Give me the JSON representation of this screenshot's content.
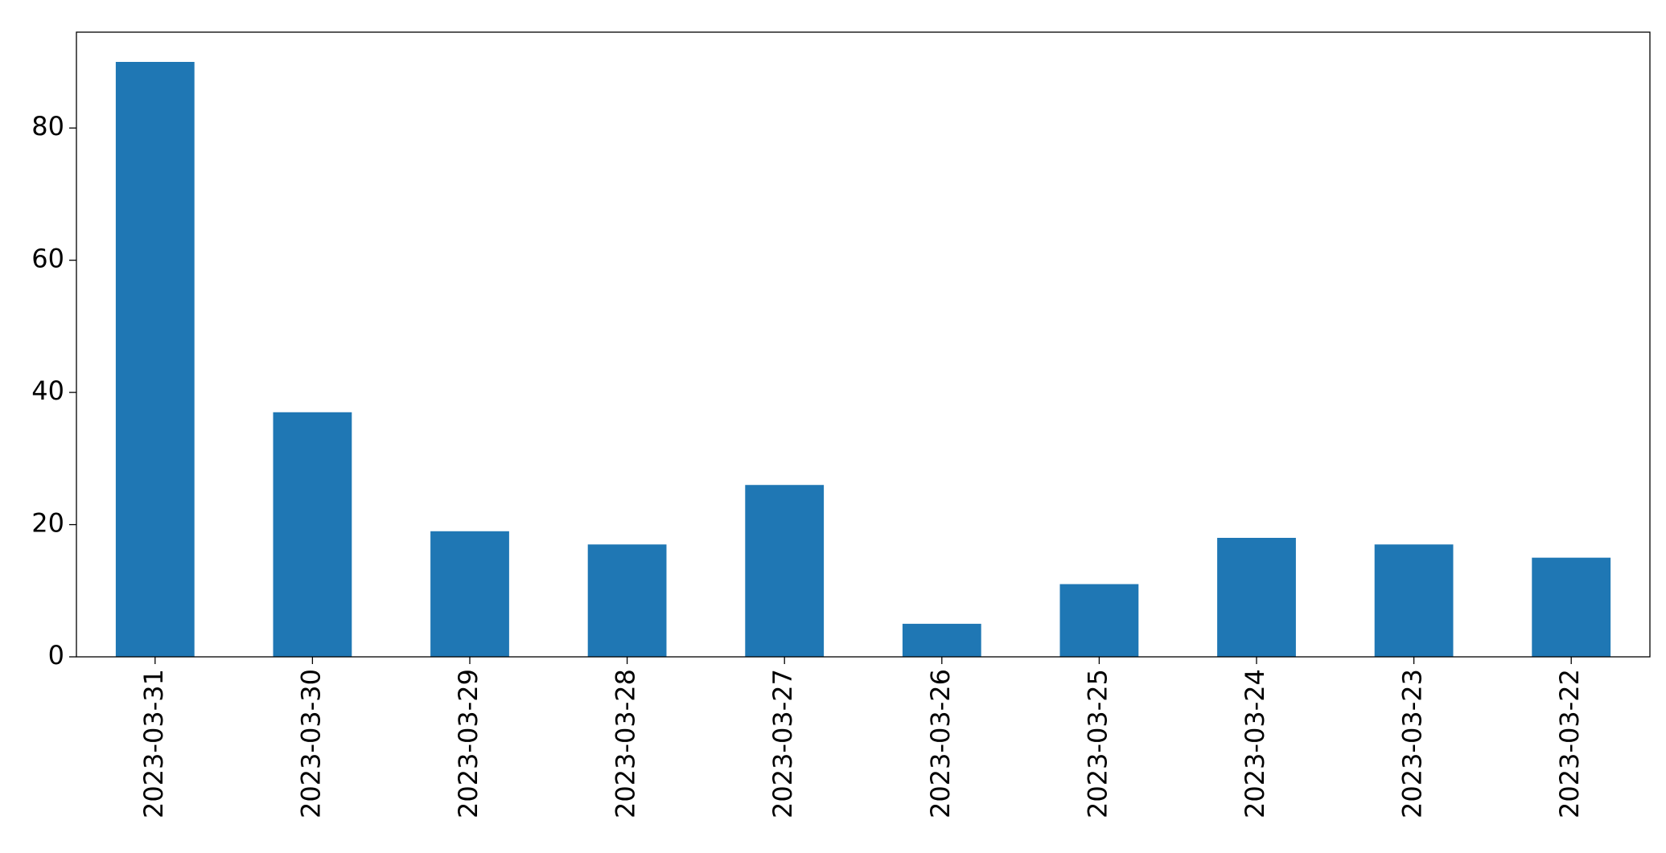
{
  "chart_data": {
    "type": "bar",
    "categories": [
      "2023-03-31",
      "2023-03-30",
      "2023-03-29",
      "2023-03-28",
      "2023-03-27",
      "2023-03-26",
      "2023-03-25",
      "2023-03-24",
      "2023-03-23",
      "2023-03-22"
    ],
    "values": [
      90,
      37,
      19,
      17,
      26,
      5,
      11,
      18,
      17,
      15
    ],
    "color": "#1f77b4",
    "ylim": [
      0,
      94.5
    ],
    "yticks": [
      0,
      20,
      40,
      60,
      80
    ],
    "grid": false
  }
}
